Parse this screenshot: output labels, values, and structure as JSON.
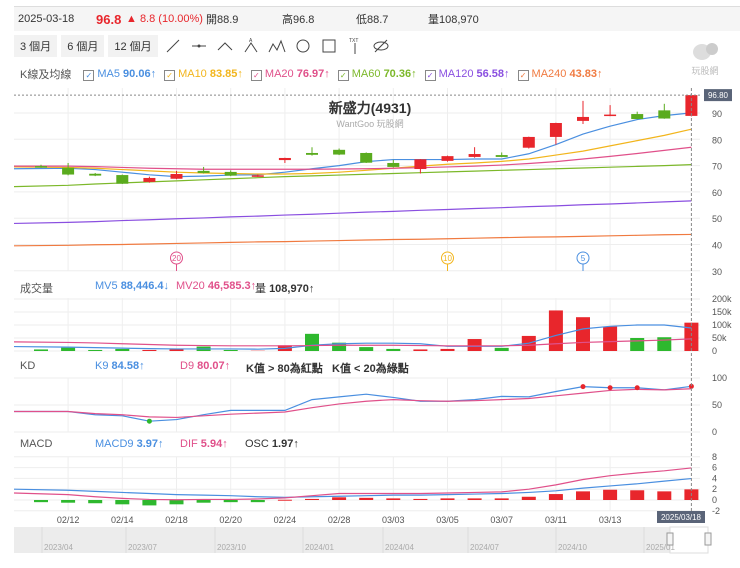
{
  "header": {
    "date": "2025-03-18",
    "price": "96.8",
    "change": "▲ 8.8 (10.00%)",
    "open_label": "開",
    "open": "88.9",
    "high_label": "高",
    "high": "96.8",
    "low_label": "低",
    "low": "88.7",
    "vol_label": "量",
    "volume": "108,970"
  },
  "toolbar": {
    "ranges": [
      "3 個月",
      "6 個月",
      "12 個月"
    ],
    "tools": [
      "line-tool-icon",
      "horizontal-line-icon",
      "angle-icon",
      "abc-pattern-icon",
      "abcde-pattern-icon",
      "circle-icon",
      "rectangle-icon",
      "text-marker-icon",
      "hide-icon"
    ]
  },
  "ma_legend": {
    "title": "K線及均線",
    "items": [
      {
        "label": "MA5",
        "value": "90.06",
        "arrow": "↑",
        "color": "#4a8fe0"
      },
      {
        "label": "MA10",
        "value": "83.85",
        "arrow": "↑",
        "color": "#f2b51c"
      },
      {
        "label": "MA20",
        "value": "76.97",
        "arrow": "↑",
        "color": "#e0508a"
      },
      {
        "label": "MA60",
        "value": "70.36",
        "arrow": "↑",
        "color": "#7cb82a"
      },
      {
        "label": "MA120",
        "value": "56.58",
        "arrow": "↑",
        "color": "#8a4fe0"
      },
      {
        "label": "MA240",
        "value": "43.83",
        "arrow": "↑",
        "color": "#f07a40"
      }
    ]
  },
  "logo": {
    "text": "玩股網"
  },
  "colors": {
    "up": "#e8262c",
    "down": "#2eb82e",
    "grid": "#eeeeee"
  },
  "chart_data": [
    {
      "type": "candlestick",
      "title": "新盛力(4931)",
      "subtitle": "WantGoo 玩股網",
      "ylim": [
        30,
        100
      ],
      "yticks": [
        90,
        80,
        70,
        60,
        50,
        40,
        30
      ],
      "last_price_tag": "96.80",
      "ohlc": [
        [
          69.8,
          70.3,
          69.2,
          69.4
        ],
        [
          69.2,
          71,
          66.3,
          66.6
        ],
        [
          66.9,
          67.2,
          66,
          66.2
        ],
        [
          66.4,
          66.6,
          63,
          63.1
        ],
        [
          63.8,
          65.8,
          63.5,
          65.3
        ],
        [
          65,
          68,
          64.8,
          66.8
        ],
        [
          68,
          69.5,
          67,
          67.2
        ],
        [
          67.6,
          68.2,
          66,
          66.2
        ],
        [
          65.9,
          66.6,
          65.7,
          66.3
        ],
        [
          72.1,
          73,
          71,
          72.9
        ],
        [
          74.8,
          77,
          73.8,
          74.1
        ],
        [
          76,
          76.5,
          74,
          74.2
        ],
        [
          74.8,
          75,
          71,
          71.1
        ],
        [
          71,
          72.2,
          69.3,
          69.5
        ],
        [
          68.7,
          72.5,
          67,
          72.4
        ],
        [
          71.8,
          73.8,
          71.5,
          73.6
        ],
        [
          73.3,
          77,
          73,
          74.4
        ],
        [
          74,
          75,
          73.2,
          73.3
        ],
        [
          76.8,
          81,
          76.5,
          80.9
        ],
        [
          80.9,
          86.3,
          78,
          86.2
        ],
        [
          87,
          94.6,
          85.8,
          88.5
        ],
        [
          88.9,
          93,
          88.8,
          89.4
        ],
        [
          89.6,
          90.5,
          87.6,
          87.7
        ],
        [
          91,
          93.5,
          87.8,
          87.9
        ],
        [
          88.9,
          96.8,
          88.7,
          96.8
        ]
      ],
      "ma": {
        "MA5": [
          68.8,
          69,
          68.5,
          67.5,
          66.5,
          65.8,
          66,
          66.4,
          66.5,
          67.5,
          68.8,
          70,
          71.5,
          72.3,
          72.3,
          72.3,
          72.5,
          72.5,
          74.5,
          78,
          82,
          85,
          87.5,
          89,
          90.06
        ],
        "MA10": [
          69.5,
          69.3,
          69,
          68.5,
          68,
          67.5,
          67.2,
          67,
          66.8,
          66.8,
          67,
          67.5,
          68.2,
          69,
          69.8,
          70.5,
          71,
          71.6,
          72.5,
          74,
          75.5,
          77.5,
          79.5,
          81.5,
          83.85
        ],
        "MA20": [
          69.8,
          69.8,
          69.6,
          69.3,
          69,
          68.8,
          68.6,
          68.6,
          68.6,
          68.6,
          68.6,
          68.7,
          68.8,
          69,
          69.2,
          69.5,
          69.8,
          70.2,
          70.8,
          71.5,
          72.5,
          73.5,
          74.6,
          75.8,
          76.97
        ],
        "MA60": [
          62,
          62.5,
          63,
          63.4,
          63.8,
          64.2,
          64.6,
          65,
          65.4,
          65.8,
          66.1,
          66.4,
          66.7,
          67,
          67.3,
          67.6,
          67.9,
          68.2,
          68.5,
          68.8,
          69.1,
          69.4,
          69.7,
          70,
          70.36
        ],
        "MA120": [
          48,
          48.4,
          48.7,
          49.1,
          49.4,
          49.8,
          50.1,
          50.5,
          50.8,
          51.2,
          51.5,
          51.9,
          52.3,
          52.6,
          53,
          53.3,
          53.7,
          54,
          54.4,
          54.7,
          55.1,
          55.4,
          55.8,
          56.2,
          56.58
        ],
        "MA240": [
          39.5,
          39.7,
          39.9,
          40,
          40.2,
          40.4,
          40.6,
          40.8,
          41,
          41.1,
          41.3,
          41.5,
          41.7,
          41.9,
          42,
          42.2,
          42.4,
          42.6,
          42.8,
          42.9,
          43.1,
          43.3,
          43.5,
          43.7,
          43.83
        ]
      },
      "period_markers": [
        {
          "label": "20",
          "index": 5,
          "color": "#e0508a"
        },
        {
          "label": "10",
          "index": 15,
          "color": "#f2b51c"
        },
        {
          "label": "5",
          "index": 20,
          "color": "#4a8fe0"
        }
      ]
    },
    {
      "type": "bar",
      "title": "成交量",
      "legend": [
        {
          "label": "MV5",
          "value": "88,446.4",
          "arrow": "↓",
          "color": "#4a8fe0"
        },
        {
          "label": "MV20",
          "value": "46,585.3",
          "arrow": "↑",
          "color": "#e0508a"
        },
        {
          "label": "量",
          "value": "108,970",
          "arrow": "↑",
          "color": "#333333"
        }
      ],
      "yticks": [
        "200k",
        "150k",
        "100k",
        "50k",
        "0"
      ],
      "ylim": [
        0,
        200000
      ],
      "values": [
        6000,
        13000,
        4000,
        8000,
        4000,
        6000,
        17000,
        4000,
        1000,
        22000,
        66000,
        32000,
        15000,
        8000,
        6000,
        8000,
        46000,
        12000,
        58000,
        156000,
        130000,
        94000,
        50000,
        53000,
        108970
      ],
      "mv5": [
        17000,
        15000,
        13000,
        11000,
        9000,
        8000,
        8000,
        8000,
        7000,
        10000,
        22000,
        28000,
        30000,
        30000,
        28000,
        18000,
        18000,
        18000,
        30000,
        60000,
        85000,
        95000,
        100000,
        100000,
        88446.4
      ],
      "mv20": [
        35000,
        33000,
        31000,
        28000,
        25000,
        22000,
        21000,
        20000,
        20000,
        20000,
        21000,
        22000,
        22000,
        22000,
        21000,
        20000,
        20000,
        20000,
        22000,
        28000,
        33000,
        36000,
        39000,
        42000,
        46585.3
      ]
    },
    {
      "type": "line",
      "title": "KD",
      "legend": [
        {
          "label": "K9",
          "value": "84.58",
          "arrow": "↑",
          "color": "#4a8fe0"
        },
        {
          "label": "D9",
          "value": "80.07",
          "arrow": "↑",
          "color": "#e0508a"
        }
      ],
      "notes": [
        "K值 > 80為紅點",
        "K值 < 20為綠點"
      ],
      "yticks": [
        100,
        50,
        0
      ],
      "ylim": [
        0,
        100
      ],
      "K": [
        38,
        38,
        32,
        30,
        20,
        23,
        32,
        40,
        40,
        40,
        60,
        65,
        70,
        64,
        57,
        57,
        60,
        66,
        65,
        75,
        84,
        82,
        82,
        78,
        84.58
      ],
      "D": [
        38,
        38,
        34,
        32,
        28,
        27,
        30,
        33,
        35,
        37,
        45,
        52,
        57,
        60,
        58,
        57,
        58,
        60,
        62,
        67,
        72,
        77,
        79,
        78,
        80.07
      ]
    },
    {
      "type": "bar+line",
      "title": "MACD",
      "legend": [
        {
          "label": "MACD9",
          "value": "3.97",
          "arrow": "↑",
          "color": "#4a8fe0"
        },
        {
          "label": "DIF",
          "value": "5.94",
          "arrow": "↑",
          "color": "#e0508a"
        },
        {
          "label": "OSC",
          "value": "1.97",
          "arrow": "↑",
          "color": "#333333"
        }
      ],
      "yticks": [
        8,
        6,
        4,
        2,
        0,
        -2
      ],
      "ylim": [
        -2,
        8
      ],
      "DIF": [
        1.3,
        1.0,
        0.6,
        0.3,
        0.1,
        0.05,
        0.1,
        0.1,
        0.2,
        0.4,
        0.8,
        1.2,
        1.2,
        1.2,
        1.2,
        1.3,
        1.4,
        1.5,
        2.0,
        2.8,
        3.8,
        4.5,
        5.0,
        5.4,
        5.94
      ],
      "MACD9": [
        2.0,
        1.8,
        1.6,
        1.4,
        1.2,
        1.0,
        0.9,
        0.8,
        0.6,
        0.5,
        0.6,
        0.7,
        0.8,
        0.9,
        0.9,
        1.0,
        1.1,
        1.2,
        1.4,
        1.7,
        2.2,
        2.6,
        3.0,
        3.5,
        3.97
      ],
      "OSC": [
        -0.4,
        -0.5,
        -0.6,
        -0.8,
        -1.0,
        -0.8,
        -0.5,
        -0.4,
        -0.4,
        0.05,
        0.2,
        0.5,
        0.4,
        0.3,
        0.2,
        0.3,
        0.3,
        0.3,
        0.6,
        1.1,
        1.6,
        1.9,
        1.8,
        1.6,
        1.97
      ]
    }
  ],
  "x_axis": {
    "ticks": [
      {
        "index": 1,
        "label": "02/12"
      },
      {
        "index": 3,
        "label": "02/14"
      },
      {
        "index": 5,
        "label": "02/18"
      },
      {
        "index": 7,
        "label": "02/20"
      },
      {
        "index": 9,
        "label": "02/24"
      },
      {
        "index": 11,
        "label": "02/28"
      },
      {
        "index": 13,
        "label": "03/03"
      },
      {
        "index": 15,
        "label": "03/05"
      },
      {
        "index": 17,
        "label": "03/07"
      },
      {
        "index": 19,
        "label": "03/11"
      },
      {
        "index": 21,
        "label": "03/13"
      }
    ],
    "cursor_date": "2025/03/18"
  },
  "navigator": {
    "labels": [
      "2023/04",
      "2023/07",
      "2023/10",
      "2024/01",
      "2024/04",
      "2024/07",
      "2024/10",
      "2025/01"
    ]
  }
}
